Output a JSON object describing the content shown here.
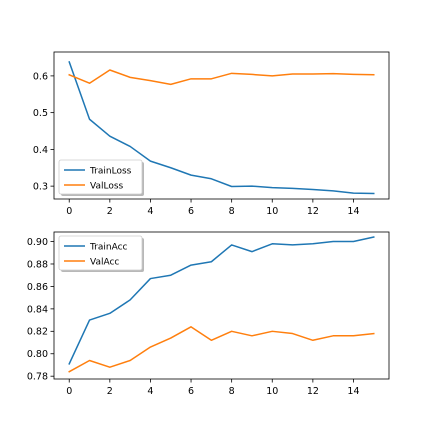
{
  "chart_data": [
    {
      "type": "line",
      "x": [
        0,
        1,
        2,
        3,
        4,
        5,
        6,
        7,
        8,
        9,
        10,
        11,
        12,
        13,
        14,
        15
      ],
      "xlim": [
        -0.75,
        15.75
      ],
      "ylim": [
        0.265,
        0.665
      ],
      "xticks": [
        0,
        2,
        4,
        6,
        8,
        10,
        12,
        14
      ],
      "yticks": [
        0.3,
        0.4,
        0.5,
        0.6
      ],
      "ytick_labels": [
        "0.3",
        "0.4",
        "0.5",
        "0.6"
      ],
      "legend_position": "lower-left",
      "grid": false,
      "series": [
        {
          "name": "TrainLoss",
          "color": "#1f77b4",
          "values": [
            0.638,
            0.482,
            0.436,
            0.408,
            0.368,
            0.35,
            0.33,
            0.32,
            0.299,
            0.3,
            0.296,
            0.294,
            0.291,
            0.287,
            0.281,
            0.28
          ]
        },
        {
          "name": "ValLoss",
          "color": "#ff7f0e",
          "values": [
            0.603,
            0.58,
            0.616,
            0.596,
            0.587,
            0.577,
            0.592,
            0.592,
            0.607,
            0.604,
            0.6,
            0.605,
            0.605,
            0.606,
            0.604,
            0.603
          ]
        }
      ]
    },
    {
      "type": "line",
      "x": [
        0,
        1,
        2,
        3,
        4,
        5,
        6,
        7,
        8,
        9,
        10,
        11,
        12,
        13,
        14,
        15
      ],
      "xlim": [
        -0.75,
        15.75
      ],
      "ylim": [
        0.7775,
        0.9085
      ],
      "xticks": [
        0,
        2,
        4,
        6,
        8,
        10,
        12,
        14
      ],
      "yticks": [
        0.78,
        0.8,
        0.82,
        0.84,
        0.86,
        0.88,
        0.9
      ],
      "ytick_labels": [
        "0.78",
        "0.80",
        "0.82",
        "0.84",
        "0.86",
        "0.88",
        "0.90"
      ],
      "legend_position": "upper-left",
      "grid": false,
      "series": [
        {
          "name": "TrainAcc",
          "color": "#1f77b4",
          "values": [
            0.791,
            0.83,
            0.836,
            0.848,
            0.867,
            0.87,
            0.879,
            0.882,
            0.897,
            0.891,
            0.898,
            0.897,
            0.898,
            0.9,
            0.9,
            0.904
          ]
        },
        {
          "name": "ValAcc",
          "color": "#ff7f0e",
          "values": [
            0.784,
            0.794,
            0.788,
            0.794,
            0.806,
            0.814,
            0.824,
            0.812,
            0.82,
            0.816,
            0.82,
            0.818,
            0.812,
            0.816,
            0.816,
            0.818
          ]
        }
      ]
    }
  ]
}
